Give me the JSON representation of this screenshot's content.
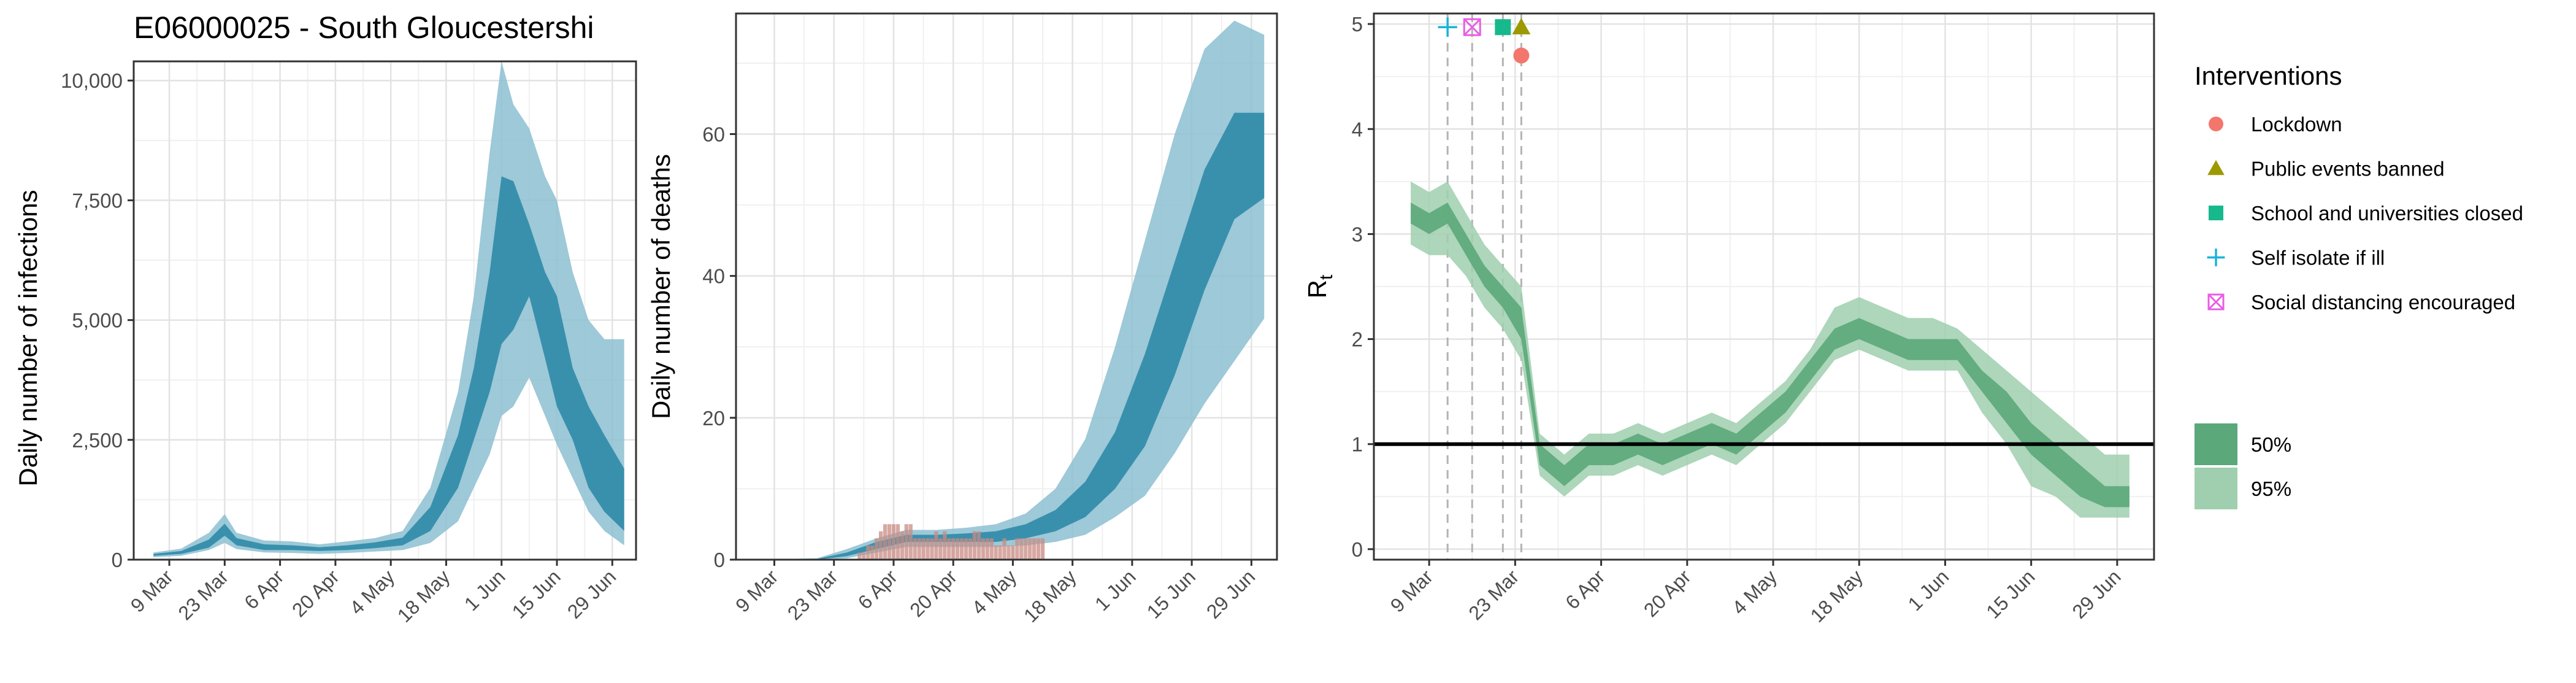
{
  "chart_data": [
    {
      "type": "area",
      "title": "E06000025 - South Gloucestershi",
      "xlabel": "",
      "ylabel": "Daily number of infections",
      "x_dates": [
        "2020-03-05",
        "2020-03-12",
        "2020-03-19",
        "2020-03-23",
        "2020-03-26",
        "2020-04-02",
        "2020-04-09",
        "2020-04-16",
        "2020-04-23",
        "2020-04-30",
        "2020-05-07",
        "2020-05-14",
        "2020-05-21",
        "2020-05-25",
        "2020-05-29",
        "2020-06-01",
        "2020-06-04",
        "2020-06-08",
        "2020-06-12",
        "2020-06-15",
        "2020-06-19",
        "2020-06-23",
        "2020-06-27",
        "2020-07-02"
      ],
      "series": [
        {
          "name": "50%",
          "lower": [
            80,
            120,
            250,
            500,
            300,
            200,
            200,
            180,
            200,
            240,
            300,
            600,
            1500,
            2500,
            3500,
            4500,
            4800,
            5500,
            4200,
            3200,
            2500,
            1500,
            1000,
            600
          ],
          "upper": [
            120,
            180,
            420,
            750,
            450,
            320,
            300,
            260,
            300,
            360,
            460,
            1100,
            2600,
            4000,
            6000,
            8000,
            7900,
            7000,
            6000,
            5500,
            4000,
            3200,
            2600,
            1900
          ]
        },
        {
          "name": "95%",
          "lower": [
            50,
            80,
            200,
            350,
            220,
            150,
            140,
            120,
            140,
            170,
            200,
            350,
            800,
            1500,
            2200,
            3000,
            3200,
            3800,
            3000,
            2400,
            1700,
            1000,
            600,
            300
          ],
          "upper": [
            150,
            230,
            560,
            950,
            560,
            400,
            380,
            320,
            380,
            450,
            600,
            1500,
            3500,
            5500,
            8500,
            10400,
            9500,
            9000,
            8000,
            7500,
            6000,
            5000,
            4600,
            4600
          ]
        }
      ],
      "ylim": [
        0,
        10400
      ],
      "yticks": [
        "0",
        "2,500",
        "5,000",
        "7,500",
        "10,000"
      ],
      "ytick_values": [
        0,
        2500,
        5000,
        7500,
        10000
      ],
      "xticks": [
        "9 Mar",
        "23 Mar",
        "6 Apr",
        "20 Apr",
        "4 May",
        "18 May",
        "1 Jun",
        "15 Jun",
        "29 Jun"
      ],
      "xtick_dates": [
        "2020-03-09",
        "2020-03-23",
        "2020-04-06",
        "2020-04-20",
        "2020-05-04",
        "2020-05-18",
        "2020-06-01",
        "2020-06-15",
        "2020-06-29"
      ],
      "xlim": [
        "2020-02-29",
        "2020-07-05"
      ],
      "grid": true,
      "colors": {
        "band50": "#2f8aa8",
        "band95": "#8cbfd1"
      }
    },
    {
      "type": "area",
      "title": "",
      "xlabel": "",
      "ylabel": "Daily number of deaths",
      "x_dates": [
        "2020-03-05",
        "2020-03-19",
        "2020-03-26",
        "2020-04-02",
        "2020-04-09",
        "2020-04-16",
        "2020-04-23",
        "2020-04-30",
        "2020-05-07",
        "2020-05-14",
        "2020-05-21",
        "2020-05-28",
        "2020-06-04",
        "2020-06-11",
        "2020-06-18",
        "2020-06-25",
        "2020-07-02"
      ],
      "series": [
        {
          "name": "50%",
          "lower": [
            0,
            0,
            0.5,
            1.5,
            2.5,
            2.5,
            2.5,
            2.5,
            3,
            4,
            6,
            10,
            16,
            26,
            38,
            48,
            51
          ],
          "upper": [
            0,
            0.1,
            1,
            2.5,
            3.5,
            3.5,
            3.7,
            4,
            5,
            7,
            11,
            18,
            29,
            42,
            55,
            63,
            63
          ]
        },
        {
          "name": "95%",
          "lower": [
            0,
            0,
            0.2,
            1,
            1.8,
            1.8,
            1.8,
            1.8,
            2,
            2.5,
            3.5,
            6,
            9,
            15,
            22,
            28,
            34
          ],
          "upper": [
            0,
            0.2,
            1.5,
            3,
            4.2,
            4.2,
            4.5,
            5,
            6.5,
            10,
            17,
            30,
            45,
            60,
            72,
            76,
            74
          ]
        }
      ],
      "observed_deaths": {
        "dates": [
          "2020-03-29",
          "2020-03-30",
          "2020-03-31",
          "2020-04-01",
          "2020-04-02",
          "2020-04-03",
          "2020-04-04",
          "2020-04-05",
          "2020-04-06",
          "2020-04-07",
          "2020-04-08",
          "2020-04-09",
          "2020-04-10",
          "2020-04-11",
          "2020-04-12",
          "2020-04-13",
          "2020-04-14",
          "2020-04-15",
          "2020-04-16",
          "2020-04-17",
          "2020-04-18",
          "2020-04-19",
          "2020-04-20",
          "2020-04-21",
          "2020-04-22",
          "2020-04-23",
          "2020-04-24",
          "2020-04-25",
          "2020-04-26",
          "2020-04-27",
          "2020-04-28",
          "2020-04-29",
          "2020-04-30",
          "2020-05-01",
          "2020-05-02",
          "2020-05-03",
          "2020-05-04",
          "2020-05-05",
          "2020-05-06",
          "2020-05-07",
          "2020-05-08",
          "2020-05-09",
          "2020-05-10",
          "2020-05-11"
        ],
        "values": [
          1,
          1,
          2,
          2,
          3,
          4,
          5,
          5,
          5,
          5,
          4,
          5,
          5,
          3,
          3,
          3,
          3,
          3,
          4,
          3,
          4,
          3,
          3,
          3,
          3,
          3,
          3,
          4,
          4,
          3,
          3,
          3,
          2,
          2,
          3,
          2,
          2,
          3,
          3,
          3,
          3,
          3,
          3,
          3
        ]
      },
      "ylim": [
        0,
        77
      ],
      "yticks": [
        "0",
        "20",
        "40",
        "60"
      ],
      "ytick_values": [
        0,
        20,
        40,
        60
      ],
      "xticks": [
        "9 Mar",
        "23 Mar",
        "6 Apr",
        "20 Apr",
        "4 May",
        "18 May",
        "1 Jun",
        "15 Jun",
        "29 Jun"
      ],
      "xtick_dates": [
        "2020-03-09",
        "2020-03-23",
        "2020-04-06",
        "2020-04-20",
        "2020-05-04",
        "2020-05-18",
        "2020-06-01",
        "2020-06-15",
        "2020-06-29"
      ],
      "xlim": [
        "2020-02-29",
        "2020-07-05"
      ],
      "grid": true,
      "colors": {
        "band50": "#2f8aa8",
        "band95": "#8cbfd1",
        "bars": "#c98b83"
      }
    },
    {
      "type": "area",
      "title": "",
      "xlabel": "",
      "ylabel": "R",
      "ylabel_subscript": "t",
      "x_dates": [
        "2020-03-06",
        "2020-03-09",
        "2020-03-12",
        "2020-03-15",
        "2020-03-18",
        "2020-03-21",
        "2020-03-24",
        "2020-03-27",
        "2020-03-31",
        "2020-04-04",
        "2020-04-08",
        "2020-04-12",
        "2020-04-16",
        "2020-04-20",
        "2020-04-24",
        "2020-04-28",
        "2020-05-02",
        "2020-05-06",
        "2020-05-10",
        "2020-05-14",
        "2020-05-18",
        "2020-05-22",
        "2020-05-26",
        "2020-05-30",
        "2020-06-03",
        "2020-06-07",
        "2020-06-11",
        "2020-06-15",
        "2020-06-19",
        "2020-06-23",
        "2020-06-27",
        "2020-07-01"
      ],
      "series": [
        {
          "name": "50%",
          "lower": [
            3.1,
            3.0,
            3.1,
            2.8,
            2.5,
            2.3,
            2.0,
            0.8,
            0.6,
            0.8,
            0.8,
            0.9,
            0.8,
            0.9,
            1.0,
            0.9,
            1.1,
            1.3,
            1.6,
            1.9,
            2.0,
            1.9,
            1.8,
            1.8,
            1.8,
            1.5,
            1.2,
            0.9,
            0.7,
            0.5,
            0.4,
            0.4
          ],
          "upper": [
            3.3,
            3.2,
            3.3,
            3.0,
            2.7,
            2.5,
            2.3,
            1.0,
            0.8,
            1.0,
            1.0,
            1.1,
            1.0,
            1.1,
            1.2,
            1.1,
            1.3,
            1.5,
            1.8,
            2.1,
            2.2,
            2.1,
            2.0,
            2.0,
            2.0,
            1.7,
            1.5,
            1.2,
            1.0,
            0.8,
            0.6,
            0.6
          ]
        },
        {
          "name": "95%",
          "lower": [
            2.9,
            2.8,
            2.8,
            2.6,
            2.3,
            2.1,
            1.8,
            0.7,
            0.5,
            0.7,
            0.7,
            0.8,
            0.7,
            0.8,
            0.9,
            0.8,
            1.0,
            1.2,
            1.5,
            1.8,
            1.9,
            1.8,
            1.7,
            1.7,
            1.7,
            1.3,
            1.0,
            0.6,
            0.5,
            0.3,
            0.3,
            0.3
          ],
          "upper": [
            3.5,
            3.4,
            3.5,
            3.2,
            2.9,
            2.7,
            2.5,
            1.1,
            0.9,
            1.1,
            1.1,
            1.2,
            1.1,
            1.2,
            1.3,
            1.2,
            1.4,
            1.6,
            1.9,
            2.3,
            2.4,
            2.3,
            2.2,
            2.2,
            2.1,
            1.9,
            1.7,
            1.5,
            1.3,
            1.1,
            0.9,
            0.9
          ]
        }
      ],
      "reference_line": 1,
      "interventions": [
        {
          "name": "Self isolate if ill",
          "date": "2020-03-12",
          "y": 4.97,
          "shape": "plus",
          "color": "#18b4d9"
        },
        {
          "name": "Social distancing encouraged",
          "date": "2020-03-16",
          "y": 4.97,
          "shape": "square-x",
          "color": "#e85ee3"
        },
        {
          "name": "School and universities closed",
          "date": "2020-03-21",
          "y": 4.97,
          "shape": "square",
          "color": "#17b98c"
        },
        {
          "name": "Public events banned",
          "date": "2020-03-24",
          "y": 4.97,
          "shape": "triangle",
          "color": "#9c9a00"
        },
        {
          "name": "Lockdown",
          "date": "2020-03-24",
          "y": 4.7,
          "shape": "circle",
          "color": "#f3766d"
        }
      ],
      "ylim": [
        -0.1,
        5.1
      ],
      "yticks": [
        "0",
        "1",
        "2",
        "3",
        "4",
        "5"
      ],
      "ytick_values": [
        0,
        1,
        2,
        3,
        4,
        5
      ],
      "xticks": [
        "9 Mar",
        "23 Mar",
        "6 Apr",
        "20 Apr",
        "4 May",
        "18 May",
        "1 Jun",
        "15 Jun",
        "29 Jun"
      ],
      "xtick_dates": [
        "2020-03-09",
        "2020-03-23",
        "2020-04-06",
        "2020-04-20",
        "2020-05-04",
        "2020-05-18",
        "2020-06-01",
        "2020-06-15",
        "2020-06-29"
      ],
      "xlim": [
        "2020-02-29",
        "2020-07-05"
      ],
      "grid": true,
      "colors": {
        "band50": "#5ba87a",
        "band95": "#9fcfae"
      }
    }
  ],
  "legend": {
    "title": "Interventions",
    "items": [
      {
        "label": "Lockdown",
        "shape": "circle",
        "color": "#f3766d"
      },
      {
        "label": "Public events banned",
        "shape": "triangle",
        "color": "#9c9a00"
      },
      {
        "label": "School and universities closed",
        "shape": "square",
        "color": "#17b98c"
      },
      {
        "label": "Self isolate if ill",
        "shape": "plus",
        "color": "#18b4d9"
      },
      {
        "label": "Social distancing encouraged",
        "shape": "square-x",
        "color": "#e85ee3"
      }
    ],
    "bands": [
      {
        "label": "50%",
        "color": "#5ba87a"
      },
      {
        "label": "95%",
        "color": "#9fcfae"
      }
    ]
  }
}
